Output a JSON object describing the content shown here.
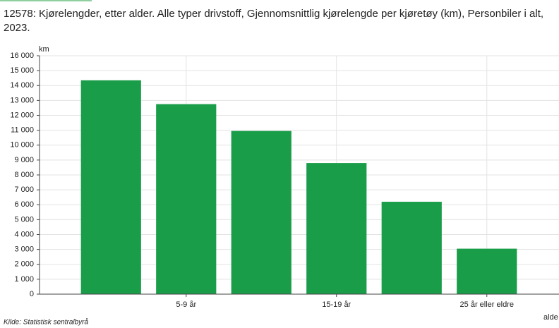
{
  "chart_data": {
    "type": "bar",
    "title": "12578: Kjørelengder, etter alder. Alle typer drivstoff, Gjennomsnittlig kjørelengde per kjøretøy (km), Personbiler i alt, 2023.",
    "y_label": "km",
    "x_label": "alde",
    "source": "Kilde:  Statistisk sentralbyrå",
    "categories": [
      null,
      "5-9 år",
      null,
      "15-19 år",
      null,
      "25 år eller eldre"
    ],
    "values": [
      14350,
      12750,
      10950,
      8800,
      6200,
      3050
    ],
    "color": "#1a9d49",
    "ylim": [
      0,
      16000
    ],
    "yticks": [
      0,
      {
        "value": 1000,
        "label": "1 000"
      },
      {
        "value": 2000,
        "label": "2 000"
      },
      {
        "value": 3000,
        "label": "3 000"
      },
      {
        "value": 4000,
        "label": "4 000"
      },
      {
        "value": 5000,
        "label": "5 000"
      },
      {
        "value": 6000,
        "label": "6 000"
      },
      {
        "value": 7000,
        "label": "7 000"
      },
      {
        "value": 8000,
        "label": "8 000"
      },
      {
        "value": 9000,
        "label": "9 000"
      },
      {
        "value": 10000,
        "label": "10 000"
      },
      {
        "value": 11000,
        "label": "11 000"
      },
      {
        "value": 12000,
        "label": "12 000"
      },
      {
        "value": 13000,
        "label": "13 000"
      },
      {
        "value": 14000,
        "label": "14 000"
      },
      {
        "value": 15000,
        "label": "15 000"
      },
      {
        "value": 16000,
        "label": "16 000"
      }
    ],
    "grid": true
  }
}
